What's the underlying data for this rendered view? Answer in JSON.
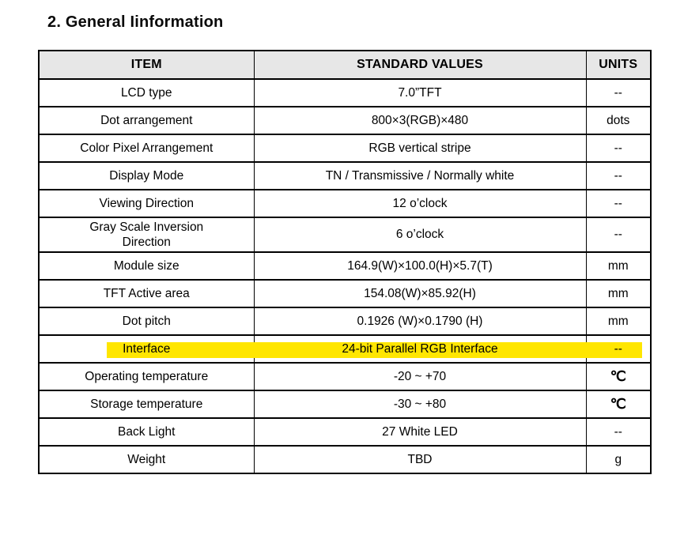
{
  "title": "2. General Iinformation",
  "table": {
    "headers": [
      "ITEM",
      "STANDARD VALUES",
      "UNITS"
    ],
    "header_bg": "#e7e7e7",
    "highlight_color": "#ffe600",
    "highlighted_row": "Dot pitch",
    "rows": [
      {
        "item": "LCD type",
        "value": "7.0”TFT",
        "units": "--"
      },
      {
        "item": "Dot arrangement",
        "value": "800×3(RGB)×480",
        "units": "dots"
      },
      {
        "item": "Color Pixel Arrangement",
        "value": "RGB vertical stripe",
        "units": "--"
      },
      {
        "item": "Display Mode",
        "value": "TN / Transmissive / Normally white",
        "units": "--"
      },
      {
        "item": "Viewing Direction",
        "value": "12 o’clock",
        "units": "--"
      },
      {
        "item": "Gray Scale Inversion\nDirection",
        "value": "6 o’clock",
        "units": "--"
      },
      {
        "item": "Module size",
        "value": "164.9(W)×100.0(H)×5.7(T)",
        "units": "mm"
      },
      {
        "item": "TFT Active area",
        "value": "154.08(W)×85.92(H)",
        "units": "mm"
      },
      {
        "item": "Dot pitch",
        "value": "0.1926 (W)×0.1790 (H)",
        "units": "mm"
      },
      {
        "item": "Interface",
        "value": "24-bit Parallel RGB Interface",
        "units": "--"
      },
      {
        "item": "Operating temperature",
        "value": "-20 ~ +70",
        "units": "℃"
      },
      {
        "item": "Storage temperature",
        "value": "-30 ~ +80",
        "units": "℃"
      },
      {
        "item": "Back Light",
        "value": "27 White LED",
        "units": "--"
      },
      {
        "item": "Weight",
        "value": "TBD",
        "units": "g"
      }
    ]
  }
}
